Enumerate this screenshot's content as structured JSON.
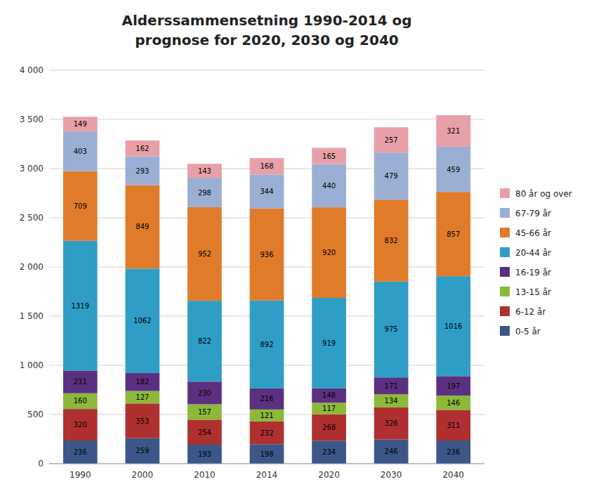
{
  "chart_data": {
    "type": "bar",
    "stacked": true,
    "title": "Alderssammensetning 1990-2014 og\nprognose for 2020, 2030 og 2040",
    "categories": [
      "1990",
      "2000",
      "2010",
      "2014",
      "2020",
      "2030",
      "2040"
    ],
    "series": [
      {
        "name": "0-5 år",
        "color": "#3B578A",
        "values": [
          236,
          259,
          193,
          198,
          234,
          246,
          236
        ]
      },
      {
        "name": "6-12 år",
        "color": "#B03030",
        "values": [
          320,
          353,
          254,
          232,
          268,
          326,
          311
        ]
      },
      {
        "name": "13-15 år",
        "color": "#8DB83B",
        "values": [
          160,
          127,
          157,
          121,
          117,
          134,
          146
        ]
      },
      {
        "name": "16-19 år",
        "color": "#5C3080",
        "values": [
          231,
          182,
          230,
          216,
          148,
          171,
          197
        ]
      },
      {
        "name": "20-44 år",
        "color": "#2E9EC6",
        "values": [
          1319,
          1062,
          822,
          892,
          919,
          975,
          1016
        ]
      },
      {
        "name": "45-66 år",
        "color": "#E07B2A",
        "values": [
          709,
          849,
          952,
          936,
          920,
          832,
          857
        ]
      },
      {
        "name": "67-79 år",
        "color": "#9BAFD4",
        "values": [
          403,
          293,
          298,
          344,
          440,
          479,
          459
        ]
      },
      {
        "name": "80 år og over",
        "color": "#E8A0A8",
        "values": [
          149,
          162,
          143,
          168,
          165,
          257,
          321
        ]
      }
    ],
    "ylim": [
      0,
      4000
    ],
    "yticks": [
      0,
      500,
      {
        "value": 1000,
        "label": "1 000"
      },
      {
        "value": 1500,
        "label": "1 500"
      },
      {
        "value": 2000,
        "label": "2 000"
      },
      {
        "value": 2500,
        "label": "2 500"
      },
      {
        "value": 3000,
        "label": "3 000"
      },
      {
        "value": 3500,
        "label": "3 500"
      },
      {
        "value": 4000,
        "label": "4 000"
      }
    ],
    "grid": true,
    "data_labels": true,
    "legend": "right"
  }
}
